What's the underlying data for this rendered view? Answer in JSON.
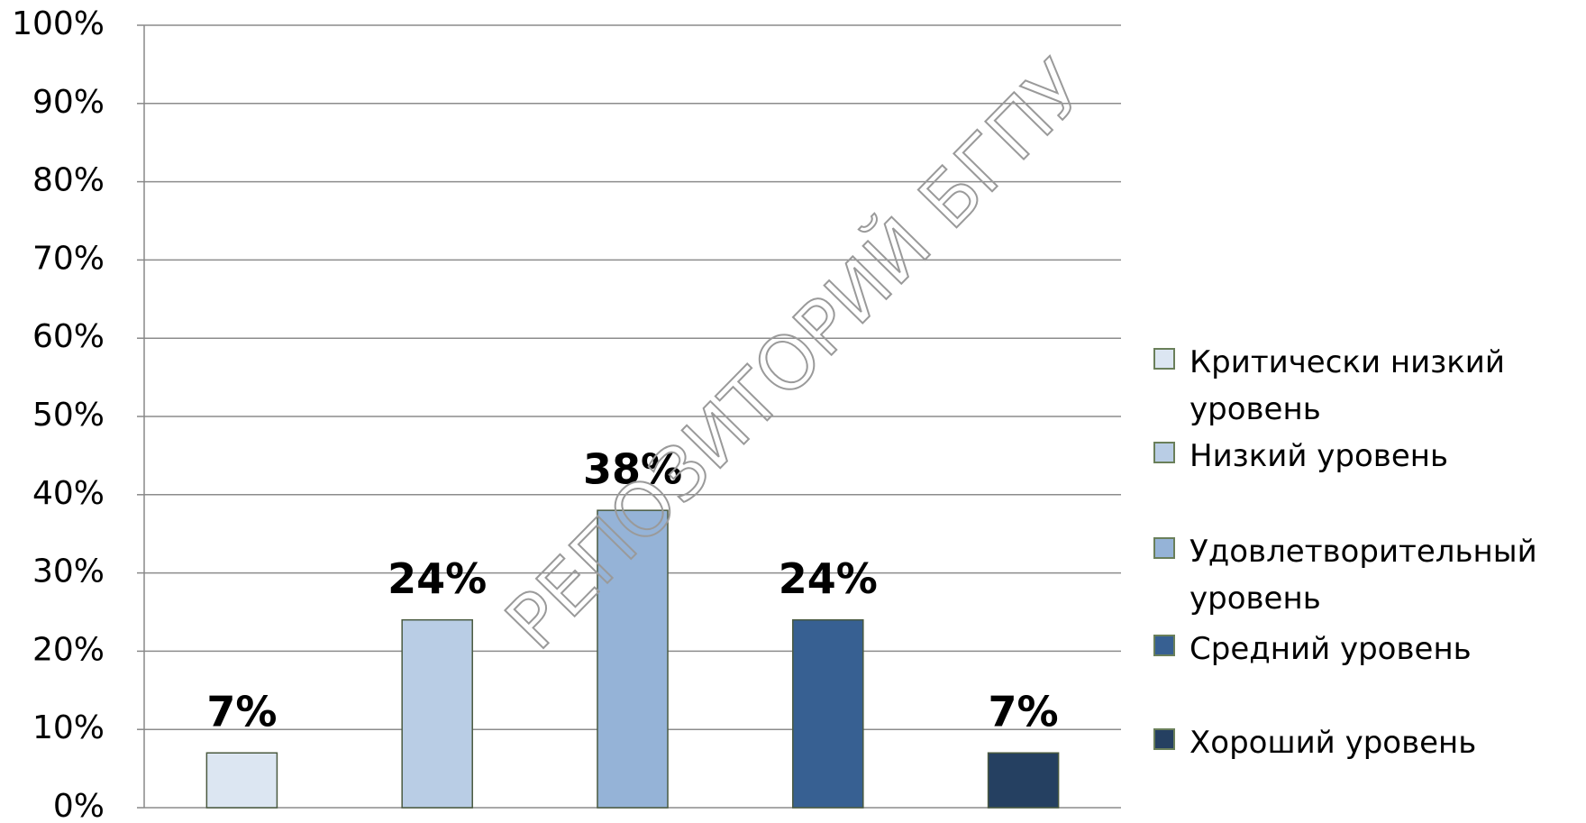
{
  "chart_data": {
    "type": "bar",
    "categories": [
      "Критически низкий уровень",
      "Низкий уровень",
      "Удовлетворительный уровень",
      "Средний уровень",
      "Хороший уровень"
    ],
    "values": [
      7,
      24,
      38,
      24,
      7
    ],
    "value_labels": [
      "7%",
      "24%",
      "38%",
      "24%",
      "7%"
    ],
    "colors": [
      "#dce6f2",
      "#b9cde5",
      "#95b3d7",
      "#376092",
      "#254061"
    ],
    "ylim": [
      0,
      100
    ],
    "yticks": [
      {
        "value": 0,
        "label": "0%"
      },
      {
        "value": 10,
        "label": "10%"
      },
      {
        "value": 20,
        "label": "20%"
      },
      {
        "value": 30,
        "label": "30%"
      },
      {
        "value": 40,
        "label": "40%"
      },
      {
        "value": 50,
        "label": "50%"
      },
      {
        "value": 60,
        "label": "60%"
      },
      {
        "value": 70,
        "label": "70%"
      },
      {
        "value": 80,
        "label": "80%"
      },
      {
        "value": 90,
        "label": "90%"
      },
      {
        "value": 100,
        "label": "100%"
      }
    ],
    "grid": true,
    "legend": "right",
    "watermark": "РЕПОЗИТОРИЙ БГПУ"
  }
}
